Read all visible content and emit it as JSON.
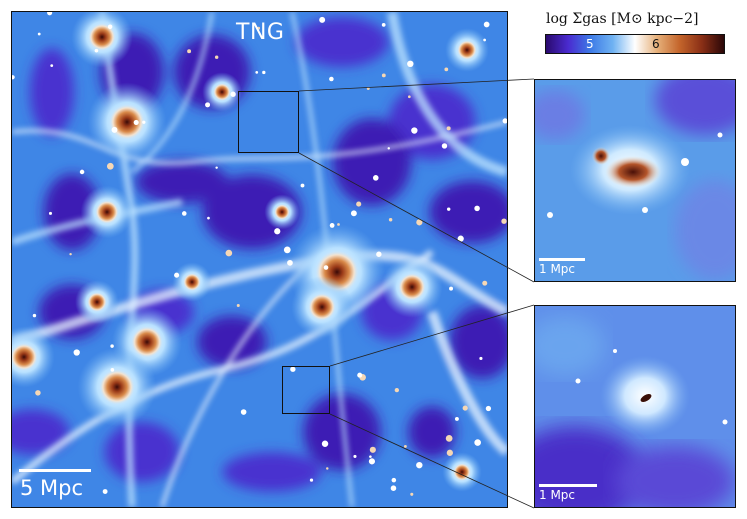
{
  "main_panel": {
    "title": "TNG",
    "scale_label": "5 Mpc"
  },
  "inset_top": {
    "scale_label": "1 Mpc"
  },
  "inset_bottom": {
    "scale_label": "1 Mpc"
  },
  "colorbar": {
    "label": "log Σgas [M⊙ kpc−2]",
    "ticks": [
      "5",
      "6"
    ],
    "colors": [
      "#2a0a6e",
      "#4a2bd0",
      "#3d7ae6",
      "#6fb2f2",
      "#ffffff",
      "#e6b07a",
      "#c4652b",
      "#8a2f16",
      "#2a0708"
    ]
  }
}
